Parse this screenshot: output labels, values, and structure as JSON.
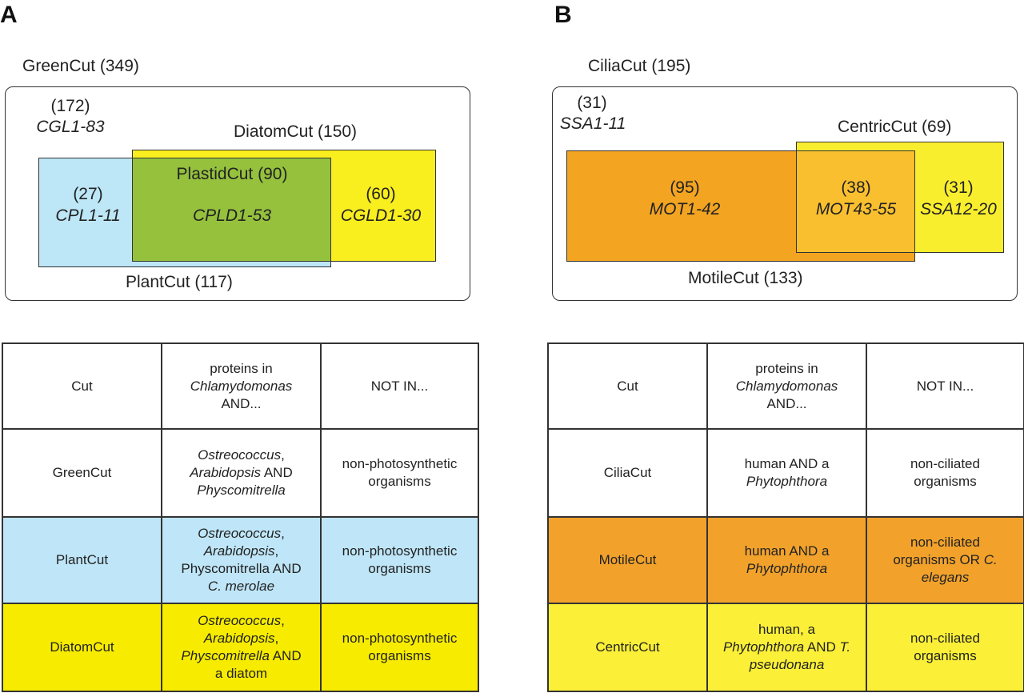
{
  "colors": {
    "plant_blue": "#bde6f7",
    "plastid_green": "#95c13d",
    "diatom_yellow": "#f9ee1e",
    "motile_orange": "#f3a421",
    "overlap_orange": "#f9bf2e",
    "centric_yellow": "#f9ee2e",
    "table_blue": "#bfe6f8",
    "table_yellow": "#f7ec00",
    "table_orange": "#f2a22b",
    "table_light_yellow": "#fbf037"
  },
  "panel_a": {
    "letter": "A",
    "outer_label": "GreenCut (349)",
    "green_only_count": "(172)",
    "green_only_ids": "CGL1-83",
    "diatom_label": "DiatomCut (150)",
    "plastid_label": "PlastidCut (90)",
    "plastid_ids": "CPLD1-53",
    "plant_only_count": "(27)",
    "plant_only_ids": "CPL1-11",
    "diatom_only_count": "(60)",
    "diatom_only_ids": "CGLD1-30",
    "plant_label": "PlantCut (117)",
    "table": {
      "header": {
        "cut": "Cut",
        "in_line1": "proteins in",
        "in_line2": "Chlamydomonas",
        "in_line3": "AND...",
        "not_in": "NOT IN..."
      },
      "rows": [
        {
          "cut": "GreenCut",
          "in_1": "Ostreococcus",
          "in_2": ",",
          "in_3": "Arabidopsis",
          "in_4": " AND",
          "in_5": "Physcomitrella",
          "not_in_1": "non-photosynthetic",
          "not_in_2": "organisms"
        },
        {
          "cut": "PlantCut",
          "in_1": "Ostreococcus",
          "in_2": ",",
          "in_3": "Arabidopsis",
          "in_4": ",",
          "in_5": "Physcomitrella AND",
          "in_6": "C. merolae",
          "not_in_1": "non-photosynthetic",
          "not_in_2": "organisms"
        },
        {
          "cut": "DiatomCut",
          "in_1": "Ostreococcus",
          "in_2": ",",
          "in_3": "Arabidopsis",
          "in_4": ",",
          "in_5": "Physcomitrella",
          "in_6": " AND",
          "in_7": "a diatom",
          "not_in_1": "non-photosynthetic",
          "not_in_2": "organisms"
        }
      ]
    }
  },
  "panel_b": {
    "letter": "B",
    "outer_label": "CiliaCut (195)",
    "cilia_only_count": "(31)",
    "cilia_only_ids": "SSA1-11",
    "centric_label": "CentricCut (69)",
    "motile_only_count": "(95)",
    "motile_only_ids": "MOT1-42",
    "overlap_count": "(38)",
    "overlap_ids": "MOT43-55",
    "centric_only_count": "(31)",
    "centric_only_ids": "SSA12-20",
    "motile_label": "MotileCut (133)",
    "table": {
      "header": {
        "cut": "Cut",
        "in_line1": "proteins in",
        "in_line2": "Chlamydomonas",
        "in_line3": "AND...",
        "not_in": "NOT IN..."
      },
      "rows": [
        {
          "cut": "CiliaCut",
          "in_1": "human AND a",
          "in_2": "Phytophthora",
          "not_in_1": "non-ciliated",
          "not_in_2": "organisms"
        },
        {
          "cut": "MotileCut",
          "in_1": "human AND a",
          "in_2": "Phytophthora",
          "not_in_1": "non-ciliated",
          "not_in_2": "organisms OR ",
          "not_in_3": "C.",
          "not_in_4": "elegans"
        },
        {
          "cut": "CentricCut",
          "in_1": "human, a",
          "in_2": "Phytophthora",
          "in_3": " AND ",
          "in_4": "T.",
          "in_5": "pseudonana",
          "not_in_1": "non-ciliated",
          "not_in_2": "organisms"
        }
      ]
    }
  }
}
